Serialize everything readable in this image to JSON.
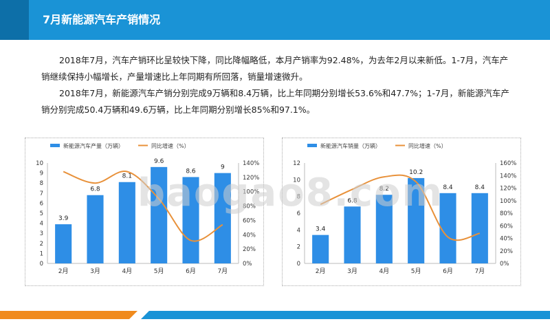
{
  "header": {
    "title": "7月新能源汽车产销情况"
  },
  "paragraphs": [
    "2018年7月，汽车产销环比呈较快下降，同比降幅略低，本月产销率为92.48%，为去年2月以来新低。1-7月，汽车产销继续保持小幅增长，产量增速比上年同期有所回落，销量增速微升。",
    "2018年7月，新能源汽车产销分别完成9万辆和8.4万辆，比上年同期分别增长53.6%和47.7%；1-7月，新能源汽车产销分别完成50.4万辆和49.6万辆，比上年同期分别增长85%和97.1%。"
  ],
  "watermark": "baogao8.com",
  "colors": {
    "bar": "#2e8ee6",
    "line": "#e8913a",
    "header": "#1a93d6",
    "footer_orange": "#f08a1c"
  },
  "chart_data": [
    {
      "type": "bar",
      "categories": [
        "2月",
        "3月",
        "4月",
        "5月",
        "6月",
        "7月"
      ],
      "series": [
        {
          "name": "新能源汽车产量（万辆）",
          "type": "bar",
          "axis": "left",
          "values": [
            3.9,
            6.8,
            8.1,
            9.6,
            8.6,
            9.0
          ]
        },
        {
          "name": "同比增速（%）",
          "type": "line",
          "axis": "right",
          "values": [
            128,
            112,
            128,
            90,
            32,
            54
          ]
        }
      ],
      "y_left": {
        "min": 0,
        "max": 10,
        "ticks": [
          "0",
          "1",
          "2",
          "3",
          "4",
          "5",
          "6",
          "7",
          "8",
          "9",
          "10"
        ]
      },
      "y_right": {
        "min": 0,
        "max": 140,
        "ticks": [
          "0%",
          "20%",
          "40%",
          "60%",
          "80%",
          "100%",
          "120%",
          "140%"
        ]
      },
      "grid": false,
      "legend": "top"
    },
    {
      "type": "bar",
      "categories": [
        "2月",
        "3月",
        "4月",
        "5月",
        "6月",
        "7月"
      ],
      "series": [
        {
          "name": "新能源汽车销量（万辆）",
          "type": "bar",
          "axis": "left",
          "values": [
            3.4,
            6.8,
            8.2,
            10.2,
            8.4,
            8.4
          ]
        },
        {
          "name": "同比增速（%）",
          "type": "line",
          "axis": "right",
          "values": [
            94,
            118,
            138,
            130,
            42,
            48
          ]
        }
      ],
      "y_left": {
        "min": 0,
        "max": 12,
        "ticks": [
          "0",
          "2",
          "4",
          "6",
          "8",
          "10",
          "12"
        ]
      },
      "y_right": {
        "min": 0,
        "max": 160,
        "ticks": [
          "0%",
          "20%",
          "40%",
          "60%",
          "80%",
          "100%",
          "120%",
          "140%",
          "160%"
        ]
      },
      "grid": false,
      "legend": "top"
    }
  ]
}
